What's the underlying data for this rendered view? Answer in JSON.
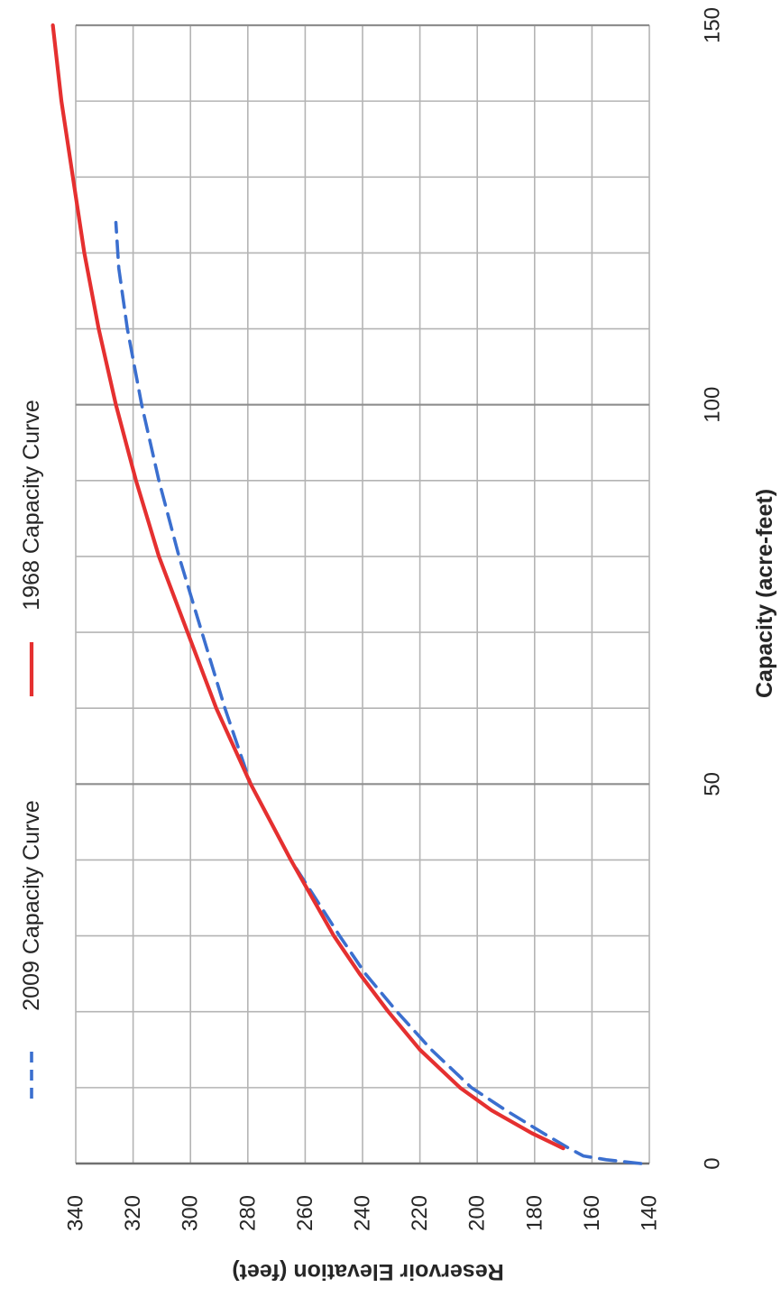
{
  "chart_data": {
    "type": "line",
    "title": "",
    "xlabel": "Capacity (acre-feet)",
    "ylabel": "Reservoir Elevation (feet)",
    "xlim": [
      0,
      150
    ],
    "ylim": [
      140,
      340
    ],
    "x_ticks": [
      "0",
      "50",
      "100",
      "150"
    ],
    "y_ticks": [
      "140",
      "160",
      "180",
      "200",
      "220",
      "240",
      "260",
      "280",
      "300",
      "320",
      "340"
    ],
    "x_minor_step": 10,
    "grid": true,
    "orientation": "rotated 90 degrees counter-clockwise",
    "legend_position": "top",
    "series": [
      {
        "name": "2009 Capacity Curve",
        "style": "dashed",
        "color": "#3b6fcf",
        "points": [
          [
            0,
            143
          ],
          [
            0.5,
            155
          ],
          [
            1,
            163
          ],
          [
            2,
            168
          ],
          [
            4,
            177
          ],
          [
            7,
            190
          ],
          [
            10,
            202
          ],
          [
            15,
            216
          ],
          [
            20,
            228
          ],
          [
            25,
            239
          ],
          [
            30,
            248
          ],
          [
            40,
            265
          ],
          [
            50,
            279
          ],
          [
            60,
            288
          ],
          [
            70,
            296
          ],
          [
            80,
            304
          ],
          [
            90,
            311
          ],
          [
            100,
            317
          ],
          [
            110,
            322
          ],
          [
            118,
            325
          ],
          [
            124,
            326
          ]
        ]
      },
      {
        "name": "1968 Capacity Curve",
        "style": "solid",
        "color": "#e53030",
        "points": [
          [
            2,
            170
          ],
          [
            4,
            181
          ],
          [
            7,
            195
          ],
          [
            10,
            206
          ],
          [
            15,
            220
          ],
          [
            20,
            231
          ],
          [
            25,
            241
          ],
          [
            30,
            250
          ],
          [
            40,
            265
          ],
          [
            50,
            279
          ],
          [
            60,
            291
          ],
          [
            70,
            301
          ],
          [
            80,
            311
          ],
          [
            90,
            319
          ],
          [
            100,
            326
          ],
          [
            110,
            332
          ],
          [
            120,
            337
          ],
          [
            130,
            341
          ],
          [
            140,
            345
          ],
          [
            150,
            348
          ]
        ]
      }
    ]
  }
}
